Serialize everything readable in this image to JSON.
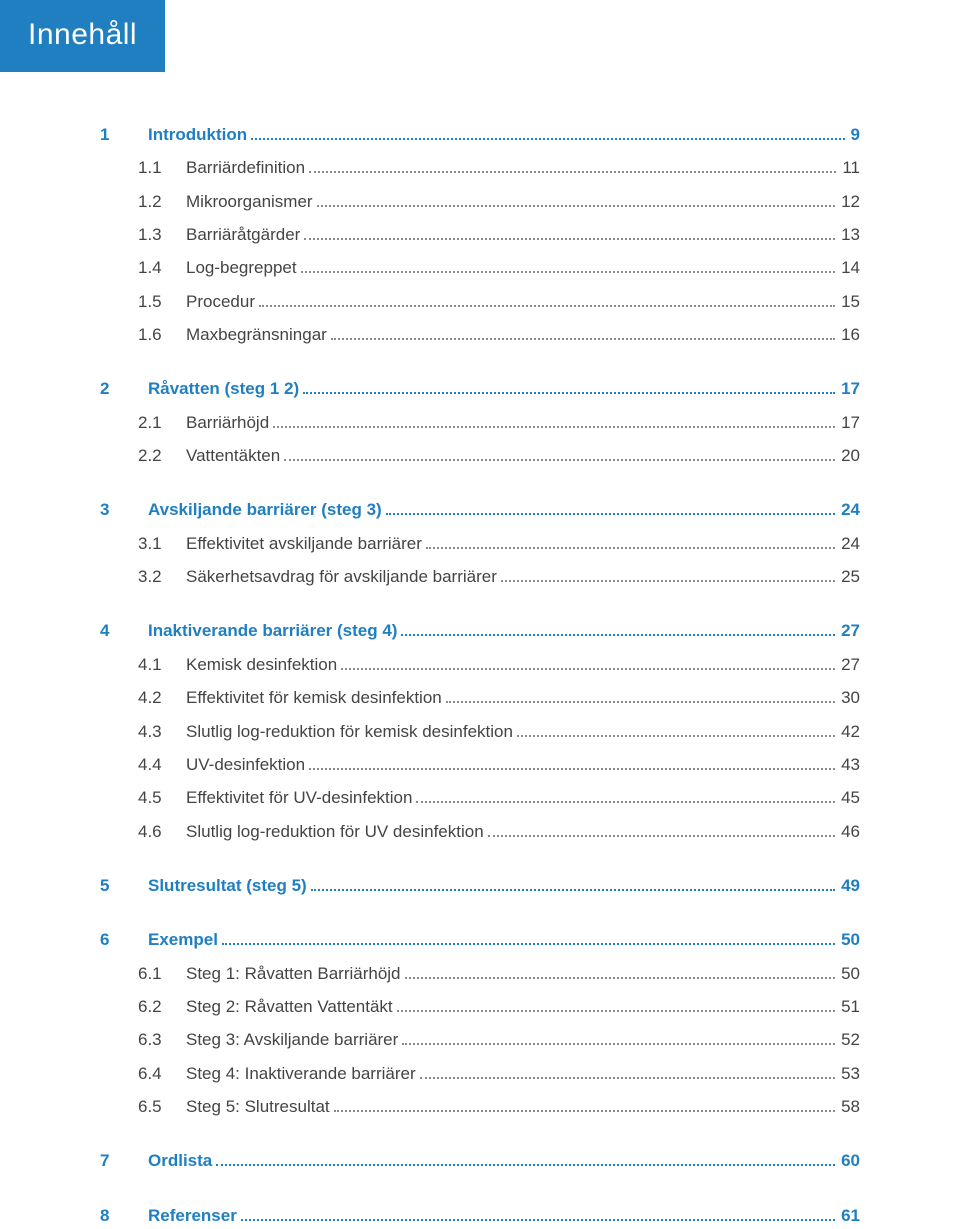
{
  "header": {
    "title": "Innehåll"
  },
  "colors": {
    "accent": "#1f7fc1",
    "text": "#444444",
    "leader": "#8a8a8a",
    "bg": "#ffffff"
  },
  "toc": [
    {
      "num": "1",
      "label": "Introduktion",
      "page": "9",
      "children": [
        {
          "num": "1.1",
          "label": "Barriärdefinition",
          "page": "11"
        },
        {
          "num": "1.2",
          "label": "Mikroorganismer",
          "page": "12"
        },
        {
          "num": "1.3",
          "label": "Barriäråtgärder",
          "page": "13"
        },
        {
          "num": "1.4",
          "label": "Log-begreppet",
          "page": "14"
        },
        {
          "num": "1.5",
          "label": "Procedur",
          "page": "15"
        },
        {
          "num": "1.6",
          "label": "Maxbegränsningar",
          "page": "16"
        }
      ]
    },
    {
      "num": "2",
      "label": "Råvatten (steg 1 2)",
      "page": "17",
      "children": [
        {
          "num": "2.1",
          "label": "Barriärhöjd",
          "page": "17"
        },
        {
          "num": "2.2",
          "label": "Vattentäkten",
          "page": "20"
        }
      ]
    },
    {
      "num": "3",
      "label": "Avskiljande barriärer (steg 3)",
      "page": "24",
      "children": [
        {
          "num": "3.1",
          "label": "Effektivitet avskiljande barriärer",
          "page": "24"
        },
        {
          "num": "3.2",
          "label": "Säkerhetsavdrag för avskiljande barriärer",
          "page": "25"
        }
      ]
    },
    {
      "num": "4",
      "label": "Inaktiverande barriärer (steg 4)",
      "page": "27",
      "children": [
        {
          "num": "4.1",
          "label": "Kemisk desinfektion",
          "page": "27"
        },
        {
          "num": "4.2",
          "label": "Effektivitet för kemisk desinfektion",
          "page": "30"
        },
        {
          "num": "4.3",
          "label": "Slutlig log-reduktion för kemisk desinfektion",
          "page": "42"
        },
        {
          "num": "4.4",
          "label": "UV-desinfektion",
          "page": "43"
        },
        {
          "num": "4.5",
          "label": "Effektivitet för UV-desinfektion",
          "page": "45"
        },
        {
          "num": "4.6",
          "label": "Slutlig log-reduktion för UV desinfektion",
          "page": "46"
        }
      ]
    },
    {
      "num": "5",
      "label": "Slutresultat (steg 5)",
      "page": "49",
      "children": []
    },
    {
      "num": "6",
      "label": "Exempel",
      "page": "50",
      "children": [
        {
          "num": "6.1",
          "label": "Steg 1: Råvatten   Barriärhöjd",
          "page": "50"
        },
        {
          "num": "6.2",
          "label": "Steg 2: Råvatten   Vattentäkt",
          "page": "51"
        },
        {
          "num": "6.3",
          "label": "Steg 3: Avskiljande barriärer",
          "page": "52"
        },
        {
          "num": "6.4",
          "label": "Steg 4: Inaktiverande barriärer",
          "page": "53"
        },
        {
          "num": "6.5",
          "label": "Steg 5: Slutresultat",
          "page": "58"
        }
      ]
    },
    {
      "num": "7",
      "label": "Ordlista",
      "page": "60",
      "children": []
    },
    {
      "num": "8",
      "label": "Referenser",
      "page": "61",
      "children": []
    }
  ]
}
